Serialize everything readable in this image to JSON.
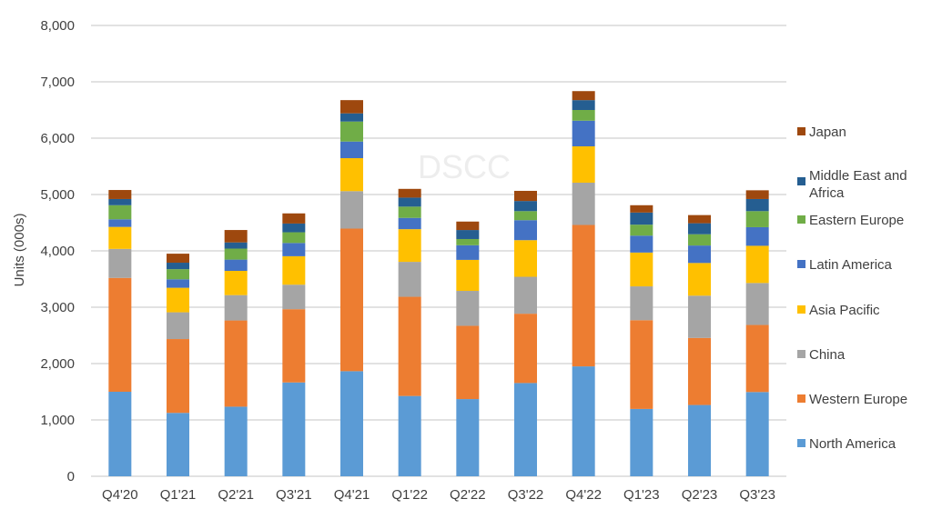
{
  "chart_data": {
    "type": "bar",
    "stacked": true,
    "title": "",
    "watermark": "DSCC",
    "xlabel": "",
    "ylabel": "Units (000s)",
    "ylim": [
      0,
      8000
    ],
    "yticks": [
      0,
      1000,
      2000,
      3000,
      4000,
      5000,
      6000,
      7000,
      8000
    ],
    "ytick_labels": [
      "0",
      "1,000",
      "2,000",
      "3,000",
      "4,000",
      "5,000",
      "6,000",
      "7,000",
      "8,000"
    ],
    "grid": true,
    "legend_position": "right",
    "categories": [
      "Q4'20",
      "Q1'21",
      "Q2'21",
      "Q3'21",
      "Q4'21",
      "Q1'22",
      "Q2'22",
      "Q3'22",
      "Q4'22",
      "Q1'23",
      "Q2'23",
      "Q3'23"
    ],
    "series": [
      {
        "name": "North America",
        "color": "#5B9BD5",
        "values": [
          1500,
          1125,
          1235,
          1665,
          1865,
          1425,
          1370,
          1655,
          1950,
          1195,
          1265,
          1495
        ]
      },
      {
        "name": "Western Europe",
        "color": "#ED7D31",
        "values": [
          2020,
          1310,
          1530,
          1300,
          2530,
          1760,
          1300,
          1230,
          2510,
          1575,
          1190,
          1190
        ]
      },
      {
        "name": "China",
        "color": "#A5A5A5",
        "values": [
          515,
          475,
          450,
          435,
          665,
          620,
          620,
          655,
          750,
          600,
          750,
          745
        ]
      },
      {
        "name": "Asia Pacific",
        "color": "#FFC000",
        "values": [
          390,
          435,
          430,
          505,
          585,
          580,
          550,
          650,
          645,
          600,
          580,
          660
        ]
      },
      {
        "name": "Latin America",
        "color": "#4472C4",
        "values": [
          135,
          150,
          200,
          235,
          295,
          200,
          260,
          355,
          455,
          300,
          310,
          330
        ]
      },
      {
        "name": "Eastern Europe",
        "color": "#70AD47",
        "values": [
          250,
          180,
          195,
          190,
          355,
          200,
          110,
          160,
          190,
          195,
          200,
          285
        ]
      },
      {
        "name": "Middle East and Africa",
        "color": "#255E91",
        "values": [
          110,
          115,
          110,
          155,
          145,
          160,
          160,
          180,
          175,
          215,
          195,
          215
        ]
      },
      {
        "name": "Japan",
        "color": "#9E480E",
        "values": [
          160,
          160,
          220,
          180,
          235,
          155,
          150,
          180,
          160,
          130,
          145,
          155
        ]
      }
    ]
  }
}
